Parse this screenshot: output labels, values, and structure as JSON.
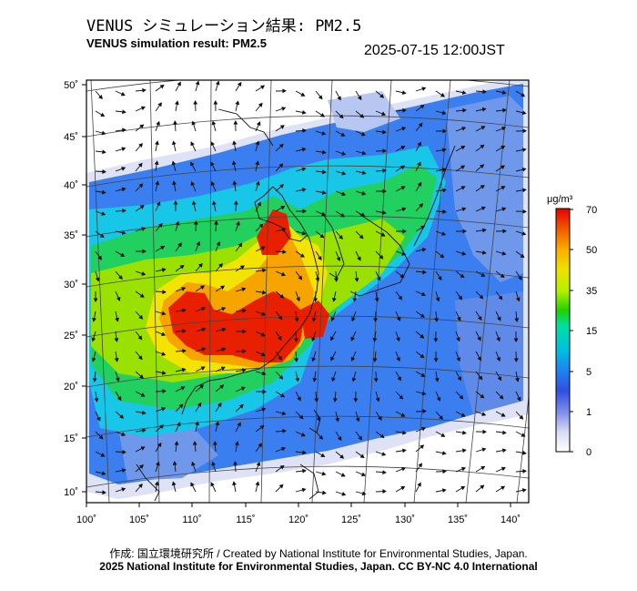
{
  "header": {
    "title_jp": "VENUS シミュレーション結果: PM2.5",
    "title_en": "VENUS simulation result: PM2.5",
    "timestamp": "2025-07-15 12:00JST"
  },
  "axes": {
    "lon_ticks": [
      "100˚",
      "105˚",
      "110˚",
      "115˚",
      "120˚",
      "125˚",
      "130˚",
      "135˚",
      "140˚"
    ],
    "lat_ticks": [
      "50˚",
      "45˚",
      "40˚",
      "35˚",
      "30˚",
      "25˚",
      "20˚",
      "15˚",
      "10˚"
    ]
  },
  "colorbar": {
    "unit": "μg/m³",
    "labels": [
      "70",
      "50",
      "35",
      "15",
      "5",
      "1",
      "0"
    ],
    "colors": [
      "#e40000",
      "#f06000",
      "#f8b000",
      "#f0e000",
      "#b4f000",
      "#20d000",
      "#00e0a0",
      "#00c0e0",
      "#2080f0",
      "#3050e0",
      "#8090e8",
      "#d8dcf4",
      "#ffffff"
    ]
  },
  "footer": {
    "credit": "作成: 国立環境研究所 / Created by National Institute for Environmental Studies, Japan.",
    "license": "2025 National Institute for Environmental Studies, Japan. CC BY-NC 4.0 International"
  }
}
